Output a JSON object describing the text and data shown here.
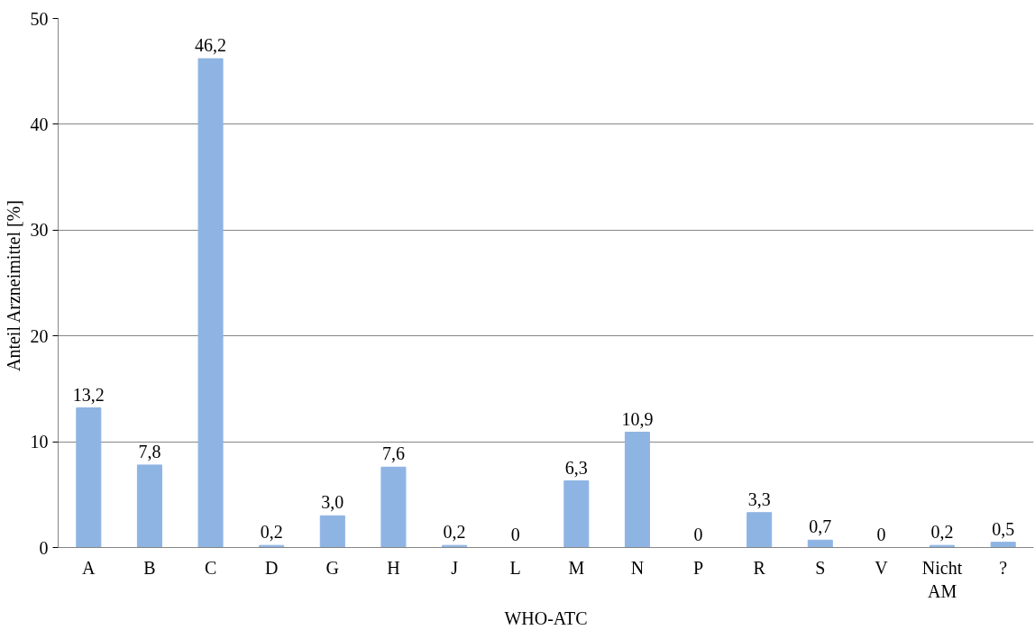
{
  "chart_data": {
    "type": "bar",
    "xlabel": "WHO-ATC",
    "ylabel": "Anteil  Arzneimittel [%]",
    "categories": [
      "A",
      "B",
      "C",
      "D",
      "G",
      "H",
      "J",
      "L",
      "M",
      "N",
      "P",
      "R",
      "S",
      "V",
      "Nicht AM",
      "?"
    ],
    "values": [
      13.2,
      7.8,
      46.2,
      0.2,
      3.0,
      7.6,
      0.2,
      0,
      6.3,
      10.9,
      0,
      3.3,
      0.7,
      0,
      0.2,
      0.5
    ],
    "value_labels": [
      "13,2",
      "7,8",
      "46,2",
      "0,2",
      "3,0",
      "7,6",
      "0,2",
      "0",
      "6,3",
      "10,9",
      "0",
      "3,3",
      "0,7",
      "0",
      "0,2",
      "0,5"
    ],
    "color": "#8eb4e3",
    "ylim": [
      0,
      50
    ],
    "yticks": [
      0,
      10,
      20,
      30,
      40,
      50
    ],
    "grid": "y"
  }
}
